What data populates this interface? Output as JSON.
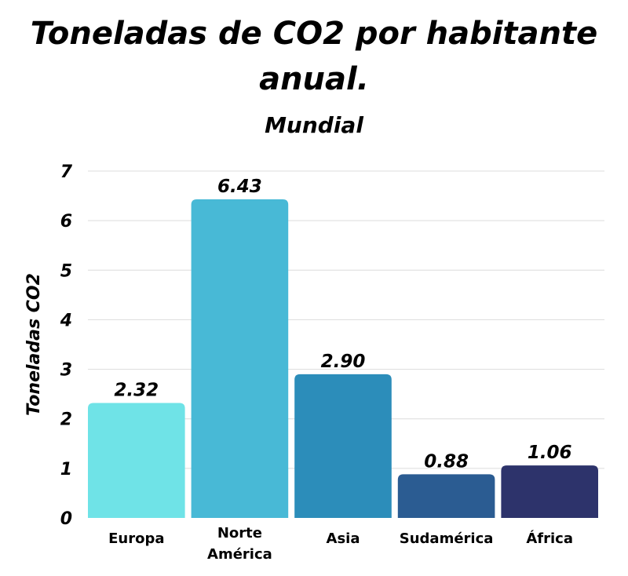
{
  "chart_data": {
    "type": "bar",
    "title_lines": [
      "Toneladas de CO2 por habitante",
      "anual."
    ],
    "subtitle": "Mundial",
    "ylabel": "Toneladas CO2",
    "xlabel": "",
    "ylim": [
      0,
      7
    ],
    "yticks": [
      "0",
      "1",
      "2",
      "3",
      "4",
      "5",
      "6",
      "7"
    ],
    "grid": true,
    "categories": [
      [
        "Europa"
      ],
      [
        "Norte",
        "América"
      ],
      [
        "Asia"
      ],
      [
        "Sudamérica"
      ],
      [
        "África"
      ]
    ],
    "values": [
      2.32,
      6.43,
      2.9,
      0.88,
      1.06
    ],
    "value_labels": [
      "2.32",
      "6.43",
      "2.90",
      "0.88",
      "1.06"
    ],
    "colors": [
      "#6fe3e7",
      "#48b9d6",
      "#2c8dba",
      "#2b5c92",
      "#2d336b"
    ]
  }
}
